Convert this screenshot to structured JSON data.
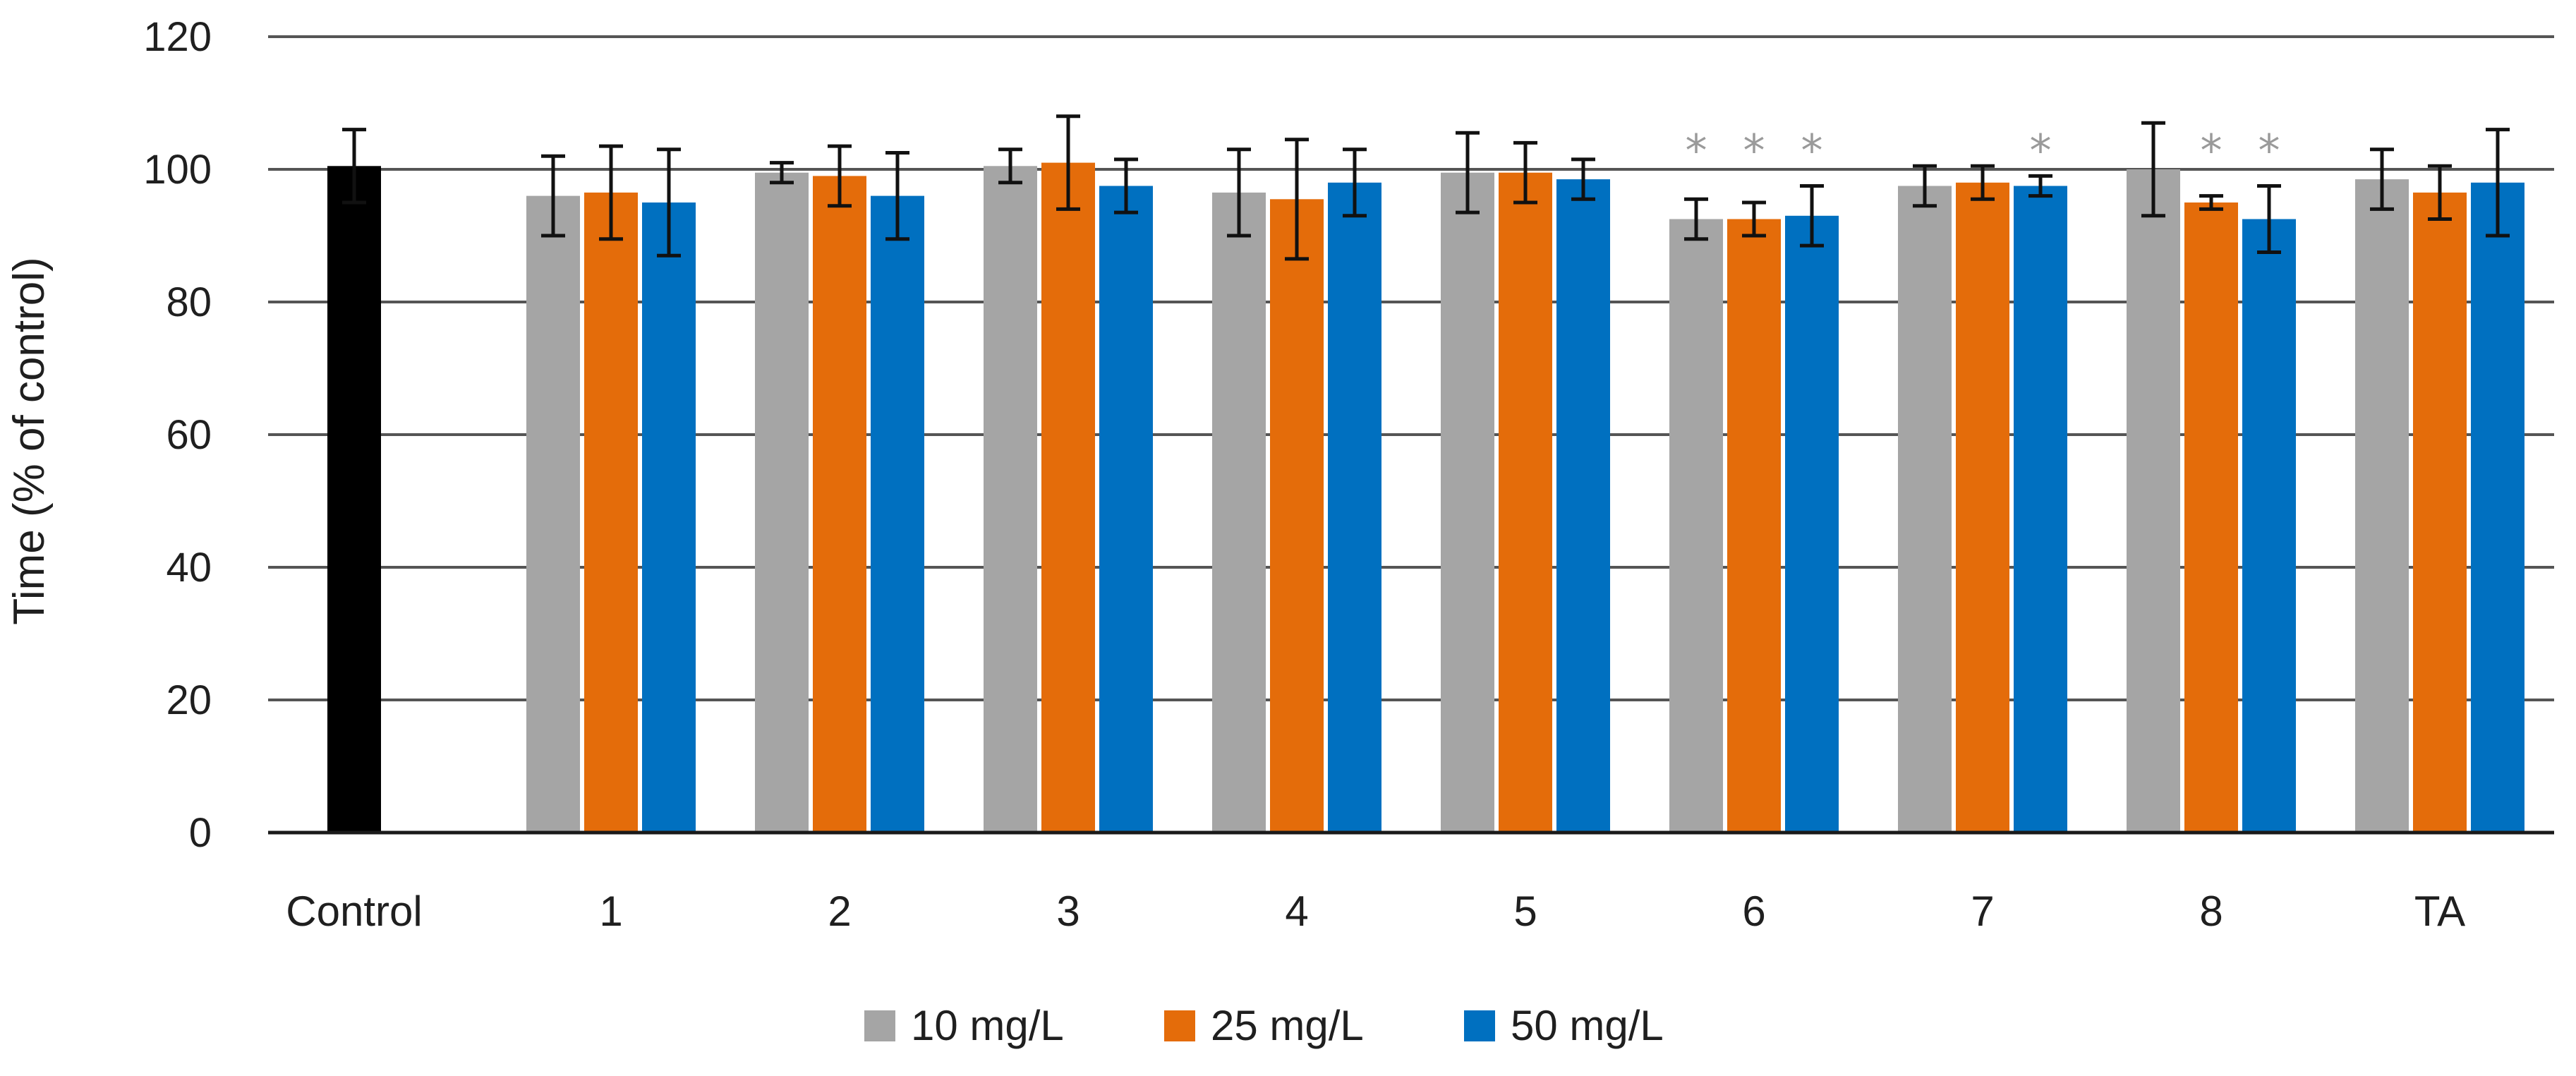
{
  "chart_data": {
    "type": "bar",
    "title": "",
    "xlabel": "",
    "ylabel": "Time (% of control)",
    "ylim": [
      0,
      120
    ],
    "yticks": [
      0,
      20,
      40,
      60,
      80,
      100,
      120
    ],
    "grid": true,
    "legend_position": "bottom",
    "control": {
      "label": "Control",
      "value": 100.5,
      "error": 5.5,
      "color": "#000000"
    },
    "categories": [
      "1",
      "2",
      "3",
      "4",
      "5",
      "6",
      "7",
      "8",
      "TA"
    ],
    "series": [
      {
        "name": "10 mg/L",
        "color": "#A5A5A5",
        "values": [
          96,
          99.5,
          100.5,
          96.5,
          99.5,
          92.5,
          97.5,
          100,
          98.5
        ],
        "errors": [
          6,
          1.5,
          2.5,
          6.5,
          6,
          3,
          3,
          7,
          4.5
        ],
        "significant": [
          false,
          false,
          false,
          false,
          false,
          true,
          false,
          false,
          false
        ]
      },
      {
        "name": "25 mg/L",
        "color": "#E46C0A",
        "values": [
          96.5,
          99,
          101,
          95.5,
          99.5,
          92.5,
          98,
          95,
          96.5
        ],
        "errors": [
          7,
          4.5,
          7,
          9,
          4.5,
          2.5,
          2.5,
          1,
          4
        ],
        "significant": [
          false,
          false,
          false,
          false,
          false,
          true,
          false,
          true,
          false
        ]
      },
      {
        "name": "50 mg/L",
        "color": "#0070C0",
        "values": [
          95,
          96,
          97.5,
          98,
          98.5,
          93,
          97.5,
          92.5,
          98
        ],
        "errors": [
          8,
          6.5,
          4,
          5,
          3,
          4.5,
          1.5,
          5,
          8
        ],
        "significant": [
          false,
          false,
          false,
          false,
          false,
          true,
          true,
          true,
          false
        ]
      }
    ],
    "significance_marker": "*"
  }
}
